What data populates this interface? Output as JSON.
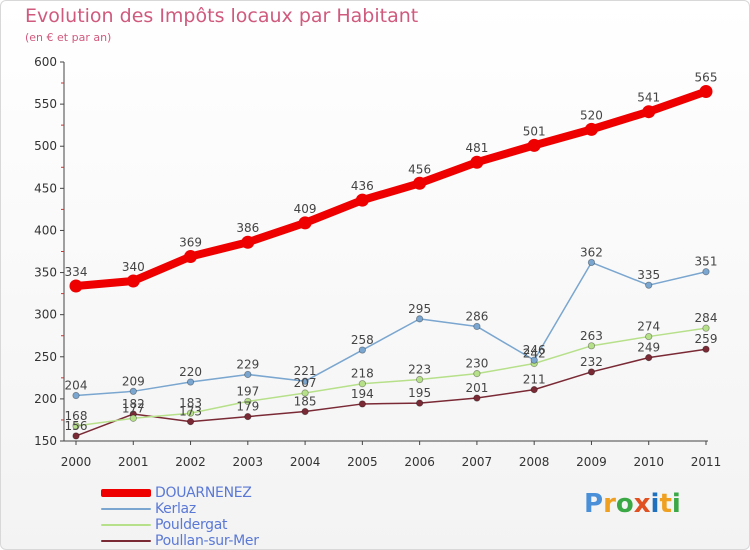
{
  "title": "Evolution des Impôts locaux par Habitant",
  "subtitle": "(en € et par an)",
  "logo": {
    "text": "Proxiti",
    "letters": [
      "P",
      "r",
      "o",
      "x",
      "i",
      "t",
      "i"
    ],
    "colors": [
      "#4a90d9",
      "#f0a020",
      "#3aa845",
      "#e05020",
      "#2070c0",
      "#f0a020",
      "#3aa845"
    ]
  },
  "chart_data": {
    "type": "line",
    "title": "Evolution des Impôts locaux par Habitant",
    "subtitle": "(en € et par an)",
    "x": [
      "2000",
      "2001",
      "2002",
      "2003",
      "2004",
      "2005",
      "2006",
      "2007",
      "2008",
      "2009",
      "2010",
      "2011"
    ],
    "ylim": [
      150,
      600
    ],
    "yticks": [
      "150",
      "200",
      "250",
      "300",
      "350",
      "400",
      "450",
      "500",
      "550",
      "600"
    ],
    "grid": false,
    "legend_position": "bottom-left",
    "series": [
      {
        "name": "DOUARNENEZ",
        "color": "#ee0000",
        "values": [
          334,
          340,
          369,
          386,
          409,
          436,
          456,
          481,
          501,
          520,
          541,
          565
        ],
        "labels": [
          "334",
          "340",
          "369",
          "386",
          "409",
          "436",
          "456",
          "481",
          "501",
          "520",
          "541",
          "565"
        ]
      },
      {
        "name": "Kerlaz",
        "color": "#7aa6cf",
        "values": [
          204,
          209,
          220,
          229,
          221,
          258,
          295,
          286,
          246,
          362,
          335,
          351
        ],
        "labels": [
          "204",
          "209",
          "220",
          "229",
          "221",
          "258",
          "295",
          "286",
          "246",
          "362",
          "335",
          "351"
        ]
      },
      {
        "name": "Pouldergat",
        "color": "#b7e08a",
        "values": [
          168,
          177,
          183,
          197,
          207,
          218,
          223,
          230,
          242,
          263,
          274,
          284
        ],
        "labels": [
          "168",
          "177",
          "183",
          "197",
          "207",
          "218",
          "223",
          "230",
          "242",
          "263",
          "274",
          "284"
        ]
      },
      {
        "name": "Poullan-sur-Mer",
        "color": "#7a2a35",
        "values": [
          156,
          182,
          173,
          179,
          185,
          194,
          195,
          201,
          211,
          232,
          249,
          259
        ],
        "labels": [
          "156",
          "182",
          "173",
          "179",
          "185",
          "194",
          "195",
          "201",
          "211",
          "232",
          "249",
          "259"
        ]
      }
    ]
  }
}
